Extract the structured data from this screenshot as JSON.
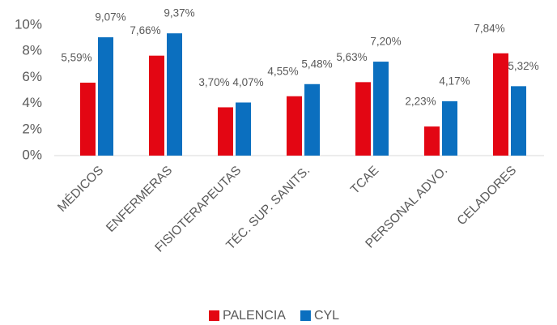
{
  "chart_data": {
    "type": "bar",
    "categories": [
      "MÉDICOS",
      "ENFERMERAS",
      "FISIOTERAPEUTAS",
      "TÉC. SUP. SANITS.",
      "TCAE",
      "PERSONAL ADVO.",
      "CELADORES"
    ],
    "series": [
      {
        "name": "PALENCIA",
        "color": "#e30613",
        "values": [
          5.59,
          7.66,
          3.7,
          4.55,
          5.63,
          2.23,
          7.84
        ],
        "value_labels": [
          "5,59%",
          "7,66%",
          "3,70%",
          "4,55%",
          "5,63%",
          "2,23%",
          "7,84%"
        ]
      },
      {
        "name": "CYL",
        "color": "#0b6fbf",
        "values": [
          9.07,
          9.37,
          4.07,
          5.48,
          7.2,
          4.17,
          5.32
        ],
        "value_labels": [
          "9,07%",
          "9,37%",
          "4,07%",
          "5,48%",
          "7,20%",
          "4,17%",
          "5,32%"
        ]
      }
    ],
    "ylim": [
      0,
      10
    ],
    "yticks": [
      {
        "value": 0,
        "label": "0%"
      },
      {
        "value": 2,
        "label": "2%"
      },
      {
        "value": 4,
        "label": "4%"
      },
      {
        "value": 6,
        "label": "6%"
      },
      {
        "value": 8,
        "label": "8%"
      },
      {
        "value": 10,
        "label": "10%"
      }
    ],
    "grid": false,
    "legend": "bottom"
  }
}
